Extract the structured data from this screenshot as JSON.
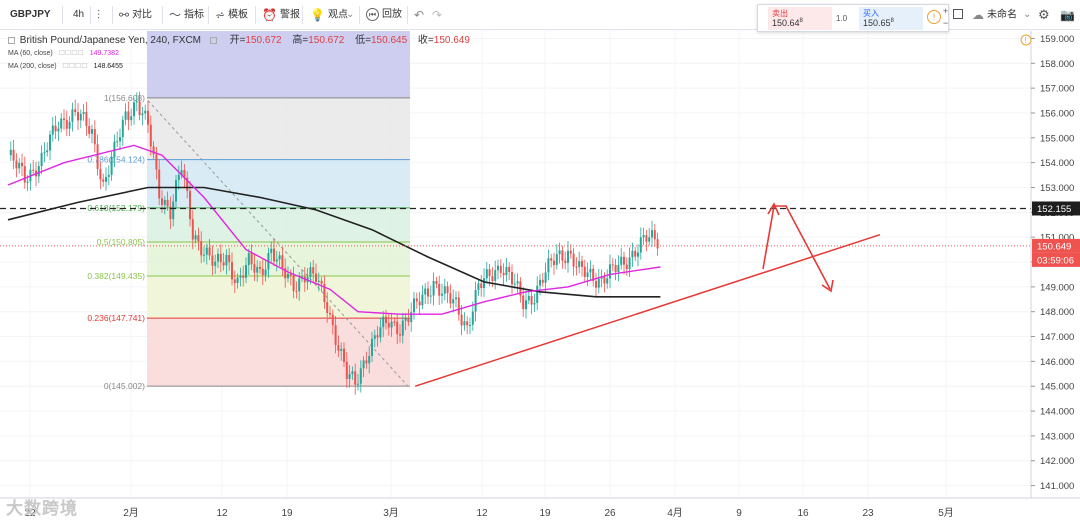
{
  "toolbar": {
    "symbol": "GBPJPY",
    "interval": "4h",
    "compare": "对比",
    "indicators": "指标",
    "templates": "模板",
    "alert": "警报",
    "ideas": "观点",
    "replay": "回放",
    "layout_name": "未命名"
  },
  "trade": {
    "sell_label": "卖出",
    "sell_price": "150.64",
    "sell_sup": "8",
    "spread": "1.0",
    "buy_label": "买入",
    "buy_price": "150.65",
    "buy_sup": "8",
    "plus": "+",
    "minus": "−"
  },
  "legend": {
    "title": "British Pound/Japanese Yen, 240, FXCM",
    "open_label": "开=",
    "open": "150.672",
    "high_label": "高=",
    "high": "150.672",
    "low_label": "低=",
    "low": "150.645",
    "close_label": "收=",
    "close": "150.649",
    "ma60_label": "MA (60, close)",
    "ma60_value": "149.7382",
    "ma200_label": "MA (200, close)",
    "ma200_value": "148.6455"
  },
  "watermark": "大数跨境",
  "colors": {
    "up": "#26a69a",
    "down": "#ef5350",
    "ma60": "#e026e0",
    "ma200": "#222222",
    "trend": "#e53935",
    "price_label": "#ef5350"
  },
  "chart_data": {
    "type": "candlestick",
    "title": "British Pound/Japanese Yen, 240, FXCM",
    "y_axis": {
      "min": 140.5,
      "max": 159.3,
      "ticks": [
        141.0,
        142.0,
        143.0,
        144.0,
        145.0,
        146.0,
        147.0,
        148.0,
        149.0,
        150.0,
        151.0,
        152.0,
        153.0,
        154.0,
        155.0,
        156.0,
        157.0,
        158.0,
        159.0
      ],
      "tick_labels": [
        "141.000",
        "142.000",
        "143.000",
        "144.000",
        "145.000",
        "146.000",
        "147.000",
        "148.000",
        "149.000",
        "150.000",
        "151.000",
        "152.000",
        "153.000",
        "154.000",
        "155.000",
        "156.000",
        "157.000",
        "158.000",
        "159.000"
      ]
    },
    "x_axis": {
      "labels": [
        "22",
        "2月",
        "12",
        "19",
        "3月",
        "12",
        "19",
        "26",
        "4月",
        "9",
        "16",
        "23",
        "5月"
      ]
    },
    "price_markers": [
      {
        "label": "152.155",
        "value": 152.155,
        "style": "dark"
      },
      {
        "label": "150.649",
        "value": 150.649,
        "style": "red"
      },
      {
        "label": "03:59:06",
        "value": 150.649,
        "style": "red-sub"
      }
    ],
    "fib_levels": [
      {
        "ratio": "1",
        "value": 156.608,
        "label": "1(156.608)",
        "color": "#888888",
        "fill": "#e8e8e8"
      },
      {
        "ratio": "0.786",
        "value": 154.124,
        "label": "0.786(154.124)",
        "color": "#5b9bd5",
        "fill": "#d2e9f5"
      },
      {
        "ratio": "0.618",
        "value": 152.179,
        "label": "0.618(152.179)",
        "color": "#4caf50",
        "fill": "#d8f0e0"
      },
      {
        "ratio": "0.5",
        "value": 150.805,
        "label": "0.5(150.805)",
        "color": "#8bc34a",
        "fill": "#e2f3d6"
      },
      {
        "ratio": "0.382",
        "value": 149.435,
        "label": "0.382(149.435)",
        "color": "#8bc34a",
        "fill": "#eef5d5"
      },
      {
        "ratio": "0.236",
        "value": 147.741,
        "label": "0.236(147.741)",
        "color": "#e53935",
        "fill": "#f9d8d8"
      },
      {
        "ratio": "0",
        "value": 145.002,
        "label": "0(145.002)",
        "color": "#888888",
        "fill": null
      }
    ],
    "series": [
      {
        "name": "MA (60, close)",
        "value": 149.7382
      },
      {
        "name": "MA (200, close)",
        "value": 148.6455
      }
    ],
    "ohlc_last": {
      "open": 150.672,
      "high": 150.672,
      "low": 150.645,
      "close": 150.649
    },
    "horizontal_line": 152.155,
    "path_points": [
      [
        0,
        154.3
      ],
      [
        6,
        153.4
      ],
      [
        12,
        154.1
      ],
      [
        18,
        155.6
      ],
      [
        24,
        156.0
      ],
      [
        30,
        155.2
      ],
      [
        34,
        153.1
      ],
      [
        38,
        154.4
      ],
      [
        42,
        155.9
      ],
      [
        46,
        156.5
      ],
      [
        50,
        155.4
      ],
      [
        54,
        152.8
      ],
      [
        58,
        152.1
      ],
      [
        62,
        153.8
      ],
      [
        66,
        151.2
      ],
      [
        70,
        150.5
      ],
      [
        74,
        149.8
      ],
      [
        78,
        150.2
      ],
      [
        82,
        149.2
      ],
      [
        86,
        149.9
      ],
      [
        90,
        149.6
      ],
      [
        94,
        150.5
      ],
      [
        98,
        149.6
      ],
      [
        102,
        149.1
      ],
      [
        106,
        149.5
      ],
      [
        110,
        149.3
      ],
      [
        114,
        148.3
      ],
      [
        118,
        146.6
      ],
      [
        121,
        145.4
      ],
      [
        124,
        145.1
      ],
      [
        128,
        146.3
      ],
      [
        132,
        147.1
      ],
      [
        136,
        147.6
      ],
      [
        140,
        147.4
      ],
      [
        144,
        147.9
      ],
      [
        148,
        148.6
      ],
      [
        152,
        149.2
      ],
      [
        156,
        148.6
      ],
      [
        160,
        148.3
      ],
      [
        164,
        147.4
      ],
      [
        168,
        148.9
      ],
      [
        172,
        149.5
      ],
      [
        176,
        149.9
      ],
      [
        180,
        149.2
      ],
      [
        184,
        148.4
      ],
      [
        188,
        148.7
      ],
      [
        192,
        149.5
      ],
      [
        196,
        150.3
      ],
      [
        200,
        150.4
      ],
      [
        204,
        149.6
      ],
      [
        208,
        149.5
      ],
      [
        212,
        149.3
      ],
      [
        216,
        149.6
      ],
      [
        220,
        150.0
      ],
      [
        224,
        150.5
      ],
      [
        228,
        150.9
      ],
      [
        232,
        150.9
      ]
    ],
    "ma60_path": [
      [
        0,
        153.1
      ],
      [
        20,
        154.0
      ],
      [
        45,
        154.7
      ],
      [
        55,
        154.3
      ],
      [
        70,
        152.6
      ],
      [
        85,
        150.5
      ],
      [
        100,
        149.6
      ],
      [
        115,
        148.9
      ],
      [
        125,
        148.0
      ],
      [
        140,
        147.9
      ],
      [
        155,
        147.9
      ],
      [
        170,
        148.4
      ],
      [
        185,
        148.8
      ],
      [
        200,
        149.0
      ],
      [
        215,
        149.5
      ],
      [
        233,
        149.8
      ]
    ],
    "ma200_path": [
      [
        0,
        151.7
      ],
      [
        25,
        152.4
      ],
      [
        50,
        153.0
      ],
      [
        70,
        153.0
      ],
      [
        90,
        152.6
      ],
      [
        110,
        152.1
      ],
      [
        130,
        151.3
      ],
      [
        150,
        150.2
      ],
      [
        170,
        149.2
      ],
      [
        190,
        148.8
      ],
      [
        210,
        148.6
      ],
      [
        233,
        148.6
      ]
    ],
    "trendline": {
      "from": [
        124,
        145.0
      ],
      "to": [
        270,
        151.1
      ]
    },
    "forecast_path": [
      [
        248,
        149.6
      ],
      [
        255,
        152.2
      ],
      [
        260,
        152.2
      ],
      [
        275,
        148.7
      ]
    ]
  }
}
